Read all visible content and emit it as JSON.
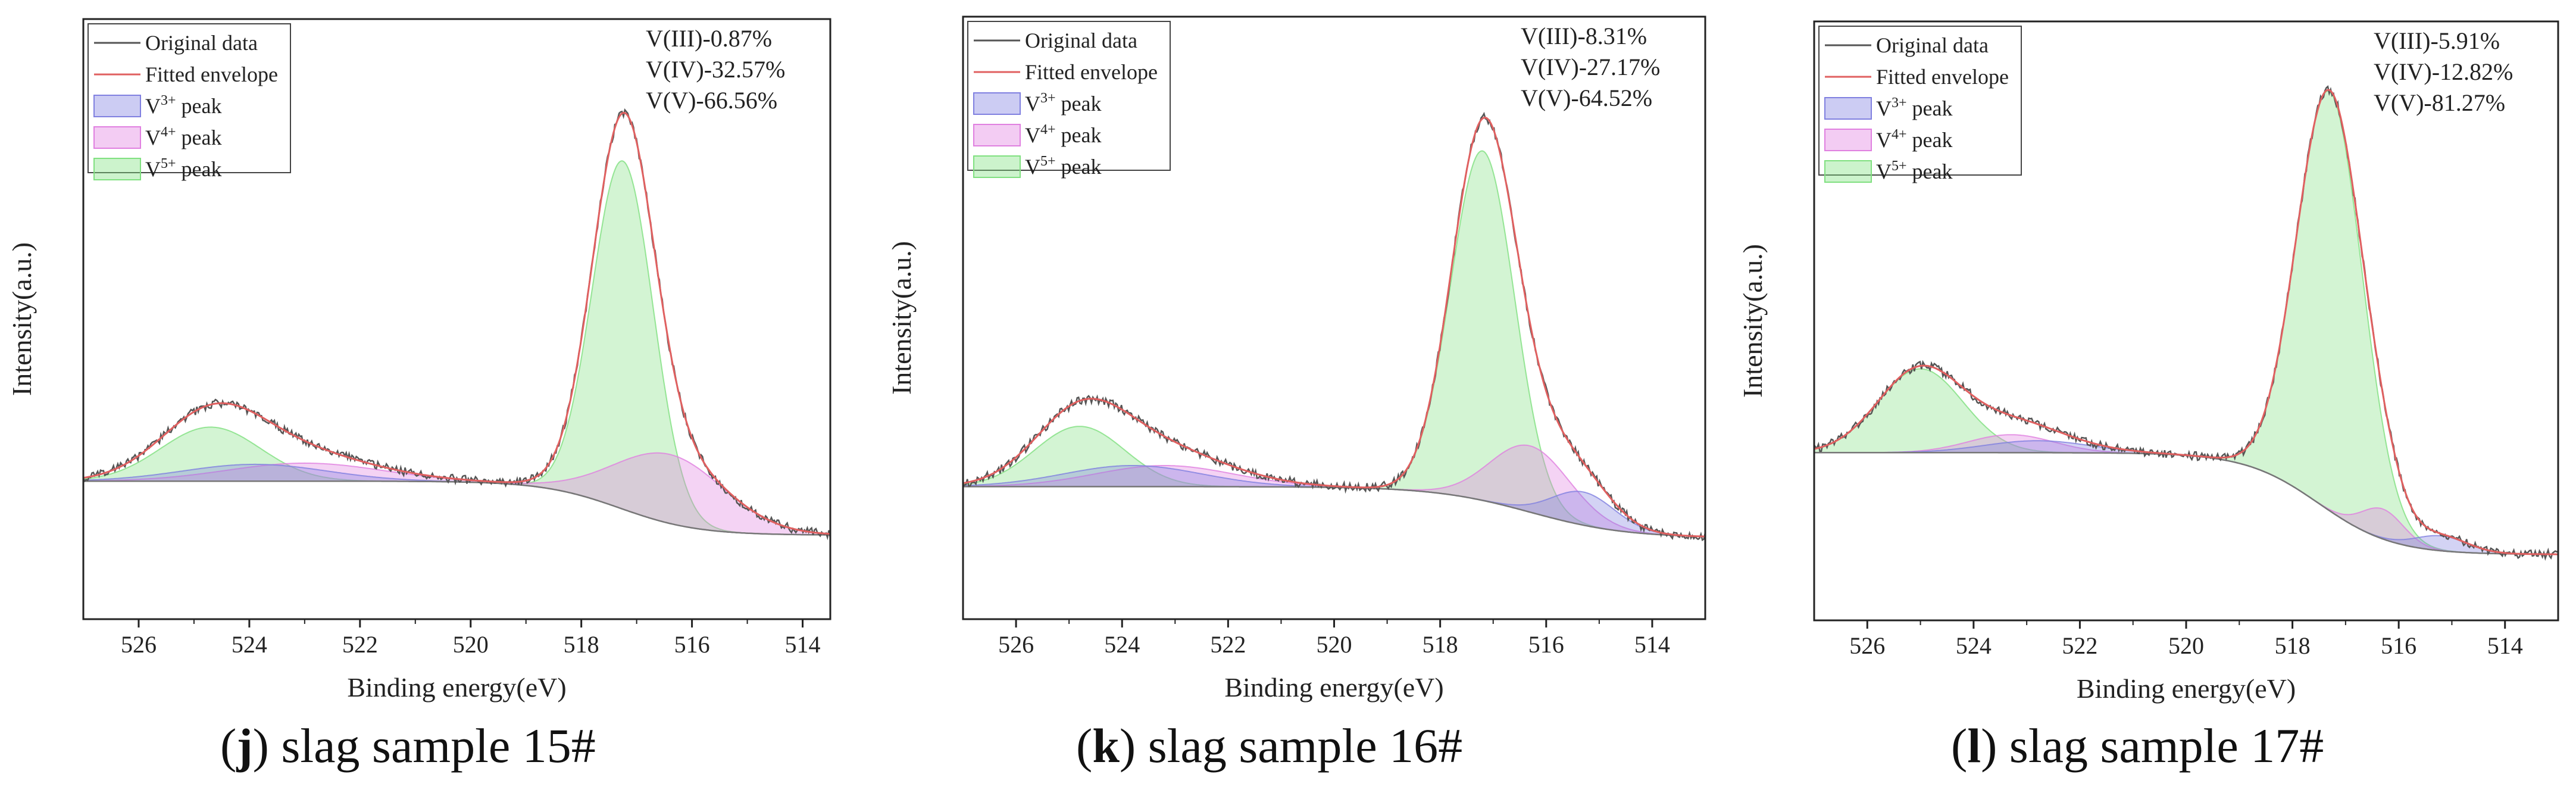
{
  "chart_data": [
    {
      "type": "line",
      "caption_letter": "j",
      "caption_text": " slag sample 15#",
      "xlabel": "Binding energy(eV)",
      "ylabel": "Intensity(a.u.)",
      "xlim": [
        527,
        513.5
      ],
      "ylim": [
        0,
        100
      ],
      "xticks": [
        526,
        524,
        522,
        520,
        518,
        516,
        514
      ],
      "legend": {
        "original": "Original data",
        "fitted": "Fitted envelope",
        "v3": "V",
        "v3_sup": "3+",
        "v4": "V",
        "v4_sup": "4+",
        "v5": "V",
        "v5_sup": "5+",
        "peak_word": " peak"
      },
      "annotations": [
        "V(III)-0.87%",
        "V(IV)-32.57%",
        "V(V)-66.56%"
      ],
      "baseline": {
        "a": 23.0,
        "b": 14.0,
        "center": 517.3,
        "width": 0.7,
        "linear": 0.0
      },
      "peaks": {
        "v3": [
          {
            "center": 523.9,
            "amp": 2.8,
            "sigma": 1.3
          }
        ],
        "v4": [
          {
            "center": 516.4,
            "amp": 11.5,
            "sigma": 1.0
          },
          {
            "center": 523.0,
            "amp": 3.0,
            "sigma": 1.4
          }
        ],
        "v5": [
          {
            "center": 517.25,
            "amp": 58.0,
            "sigma": 0.55
          },
          {
            "center": 524.7,
            "amp": 9.0,
            "sigma": 0.9
          }
        ]
      },
      "colors": {
        "original": "#555555",
        "fitted": "#e06060",
        "v3": "#8080e0",
        "v4": "#e080e0",
        "v5": "#80e080"
      }
    },
    {
      "type": "line",
      "caption_letter": "k",
      "caption_text": " slag sample 16#",
      "xlabel": "Binding energy(eV)",
      "ylabel": "Intensity(a.u.)",
      "xlim": [
        527,
        513
      ],
      "ylim": [
        0,
        100
      ],
      "xticks": [
        526,
        524,
        522,
        520,
        518,
        516,
        514
      ],
      "legend": {
        "original": "Original data",
        "fitted": "Fitted envelope",
        "v3": "V",
        "v3_sup": "3+",
        "v4": "V",
        "v4_sup": "4+",
        "v5": "V",
        "v5_sup": "5+",
        "peak_word": " peak"
      },
      "annotations": [
        "V(III)-8.31%",
        "V(IV)-27.17%",
        "V(V)-64.52%"
      ],
      "baseline": {
        "a": 22.0,
        "b": 13.5,
        "center": 516.3,
        "width": 0.9,
        "linear": 0.0
      },
      "peaks": {
        "v3": [
          {
            "center": 515.3,
            "amp": 5.5,
            "sigma": 0.6
          },
          {
            "center": 523.8,
            "amp": 3.5,
            "sigma": 1.3
          }
        ],
        "v4": [
          {
            "center": 516.3,
            "amp": 11.0,
            "sigma": 0.75
          },
          {
            "center": 523.2,
            "amp": 3.5,
            "sigma": 1.3
          }
        ],
        "v5": [
          {
            "center": 517.2,
            "amp": 58.0,
            "sigma": 0.6
          },
          {
            "center": 524.8,
            "amp": 10.0,
            "sigma": 0.85
          }
        ]
      },
      "colors": {
        "original": "#555555",
        "fitted": "#e06060",
        "v3": "#8080e0",
        "v4": "#e080e0",
        "v5": "#80e080"
      }
    },
    {
      "type": "line",
      "caption_letter": "l",
      "caption_text": " slag sample 17#",
      "xlabel": "Binding energy(eV)",
      "ylabel": "Intensity(a.u.)",
      "xlim": [
        527,
        513
      ],
      "ylim": [
        0,
        100
      ],
      "xticks": [
        526,
        524,
        522,
        520,
        518,
        516,
        514
      ],
      "legend": {
        "original": "Original data",
        "fitted": "Fitted envelope",
        "v3": "V",
        "v3_sup": "3+",
        "v4": "V",
        "v4_sup": "4+",
        "v5": "V",
        "v5_sup": "5+",
        "peak_word": " peak"
      },
      "annotations": [
        "V(III)-5.91%",
        "V(IV)-12.82%",
        "V(V)-81.27%"
      ],
      "baseline": {
        "a": 28.0,
        "b": 11.0,
        "center": 517.5,
        "width": 0.7,
        "linear": 0.0
      },
      "peaks": {
        "v3": [
          {
            "center": 515.2,
            "amp": 2.5,
            "sigma": 0.5
          },
          {
            "center": 522.8,
            "amp": 2.0,
            "sigma": 1.0
          }
        ],
        "v4": [
          {
            "center": 516.3,
            "amp": 5.0,
            "sigma": 0.4
          },
          {
            "center": 523.3,
            "amp": 3.0,
            "sigma": 0.8
          }
        ],
        "v5": [
          {
            "center": 517.3,
            "amp": 70.0,
            "sigma": 0.62
          },
          {
            "center": 525.0,
            "amp": 14.0,
            "sigma": 0.8
          }
        ]
      },
      "colors": {
        "original": "#555555",
        "fitted": "#e06060",
        "v3": "#8080e0",
        "v4": "#e080e0",
        "v5": "#80e080"
      }
    }
  ]
}
